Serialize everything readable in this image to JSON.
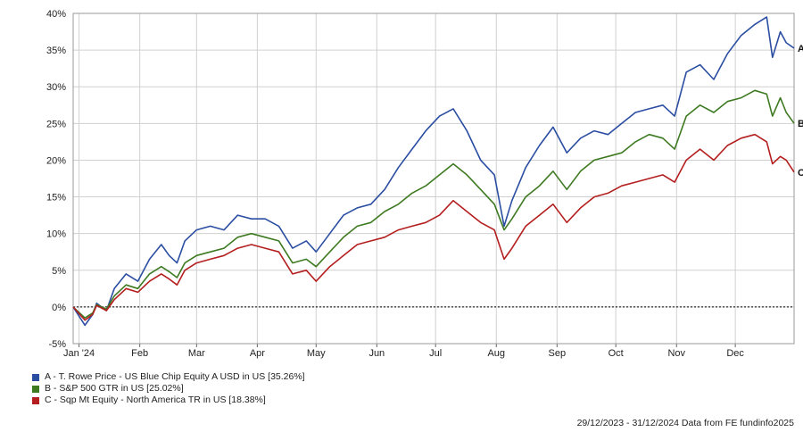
{
  "chart_data": {
    "type": "line",
    "ylim": [
      -5,
      40
    ],
    "y_ticks": [
      "40%",
      "35%",
      "30%",
      "25%",
      "20%",
      "15%",
      "10%",
      "5%",
      "0%",
      "-5%"
    ],
    "y_tick_values": [
      40,
      35,
      30,
      25,
      20,
      15,
      10,
      5,
      0,
      -5
    ],
    "x_ticks": [
      "Jan '24",
      "Feb",
      "Mar",
      "Apr",
      "May",
      "Jun",
      "Jul",
      "Aug",
      "Sep",
      "Oct",
      "Nov",
      "Dec"
    ],
    "x_tick_dates": [
      "2024-01-01",
      "2024-02-01",
      "2024-03-01",
      "2024-04-01",
      "2024-05-01",
      "2024-06-01",
      "2024-07-01",
      "2024-08-01",
      "2024-09-01",
      "2024-10-01",
      "2024-11-01",
      "2024-12-01"
    ],
    "x_range": [
      "2023-12-29",
      "2024-12-31"
    ],
    "grid": true,
    "zero_line": "dashed",
    "legend_position": "bottom-left",
    "series": [
      {
        "name": "A - T. Rowe Price - US Blue Chip Equity A USD in US [35.26%]",
        "end_label": "A",
        "color": "#2b4ea2",
        "points": [
          [
            "2023-12-29",
            0
          ],
          [
            "2024-01-04",
            -2.5
          ],
          [
            "2024-01-08",
            -1.0
          ],
          [
            "2024-01-10",
            0.5
          ],
          [
            "2024-01-15",
            -0.5
          ],
          [
            "2024-01-19",
            2.5
          ],
          [
            "2024-01-25",
            4.5
          ],
          [
            "2024-01-31",
            3.5
          ],
          [
            "2024-02-06",
            6.5
          ],
          [
            "2024-02-12",
            8.5
          ],
          [
            "2024-02-16",
            7.0
          ],
          [
            "2024-02-20",
            6.0
          ],
          [
            "2024-02-24",
            9.0
          ],
          [
            "2024-03-01",
            10.5
          ],
          [
            "2024-03-08",
            11.0
          ],
          [
            "2024-03-15",
            10.5
          ],
          [
            "2024-03-22",
            12.5
          ],
          [
            "2024-03-29",
            12.0
          ],
          [
            "2024-04-05",
            12.0
          ],
          [
            "2024-04-12",
            11.0
          ],
          [
            "2024-04-19",
            8.0
          ],
          [
            "2024-04-26",
            9.0
          ],
          [
            "2024-05-01",
            7.5
          ],
          [
            "2024-05-08",
            10.0
          ],
          [
            "2024-05-15",
            12.5
          ],
          [
            "2024-05-22",
            13.5
          ],
          [
            "2024-05-29",
            14.0
          ],
          [
            "2024-06-05",
            16.0
          ],
          [
            "2024-06-12",
            19.0
          ],
          [
            "2024-06-19",
            21.5
          ],
          [
            "2024-06-26",
            24.0
          ],
          [
            "2024-07-03",
            26.0
          ],
          [
            "2024-07-10",
            27.0
          ],
          [
            "2024-07-17",
            24.0
          ],
          [
            "2024-07-24",
            20.0
          ],
          [
            "2024-07-31",
            18.0
          ],
          [
            "2024-08-05",
            11.0
          ],
          [
            "2024-08-09",
            14.5
          ],
          [
            "2024-08-16",
            19.0
          ],
          [
            "2024-08-23",
            22.0
          ],
          [
            "2024-08-30",
            24.5
          ],
          [
            "2024-09-06",
            21.0
          ],
          [
            "2024-09-13",
            23.0
          ],
          [
            "2024-09-20",
            24.0
          ],
          [
            "2024-09-27",
            23.5
          ],
          [
            "2024-10-04",
            25.0
          ],
          [
            "2024-10-11",
            26.5
          ],
          [
            "2024-10-18",
            27.0
          ],
          [
            "2024-10-25",
            27.5
          ],
          [
            "2024-10-31",
            26.0
          ],
          [
            "2024-11-06",
            32.0
          ],
          [
            "2024-11-13",
            33.0
          ],
          [
            "2024-11-20",
            31.0
          ],
          [
            "2024-11-27",
            34.5
          ],
          [
            "2024-12-04",
            37.0
          ],
          [
            "2024-12-11",
            38.5
          ],
          [
            "2024-12-17",
            39.5
          ],
          [
            "2024-12-20",
            34.0
          ],
          [
            "2024-12-24",
            37.5
          ],
          [
            "2024-12-27",
            36.0
          ],
          [
            "2024-12-31",
            35.26
          ]
        ]
      },
      {
        "name": "B - S&P 500 GTR in US [25.02%]",
        "end_label": "B",
        "color": "#3e7a21",
        "points": [
          [
            "2023-12-29",
            0
          ],
          [
            "2024-01-04",
            -1.5
          ],
          [
            "2024-01-08",
            -0.8
          ],
          [
            "2024-01-10",
            0.3
          ],
          [
            "2024-01-15",
            -0.3
          ],
          [
            "2024-01-19",
            1.5
          ],
          [
            "2024-01-25",
            3.0
          ],
          [
            "2024-01-31",
            2.5
          ],
          [
            "2024-02-06",
            4.5
          ],
          [
            "2024-02-12",
            5.5
          ],
          [
            "2024-02-16",
            4.8
          ],
          [
            "2024-02-20",
            4.0
          ],
          [
            "2024-02-24",
            6.0
          ],
          [
            "2024-03-01",
            7.0
          ],
          [
            "2024-03-08",
            7.5
          ],
          [
            "2024-03-15",
            8.0
          ],
          [
            "2024-03-22",
            9.5
          ],
          [
            "2024-03-29",
            10.0
          ],
          [
            "2024-04-05",
            9.5
          ],
          [
            "2024-04-12",
            9.0
          ],
          [
            "2024-04-19",
            6.0
          ],
          [
            "2024-04-26",
            6.5
          ],
          [
            "2024-05-01",
            5.5
          ],
          [
            "2024-05-08",
            7.5
          ],
          [
            "2024-05-15",
            9.5
          ],
          [
            "2024-05-22",
            11.0
          ],
          [
            "2024-05-29",
            11.5
          ],
          [
            "2024-06-05",
            13.0
          ],
          [
            "2024-06-12",
            14.0
          ],
          [
            "2024-06-19",
            15.5
          ],
          [
            "2024-06-26",
            16.5
          ],
          [
            "2024-07-03",
            18.0
          ],
          [
            "2024-07-10",
            19.5
          ],
          [
            "2024-07-17",
            18.0
          ],
          [
            "2024-07-24",
            16.0
          ],
          [
            "2024-07-31",
            14.0
          ],
          [
            "2024-08-05",
            10.5
          ],
          [
            "2024-08-09",
            12.0
          ],
          [
            "2024-08-16",
            15.0
          ],
          [
            "2024-08-23",
            16.5
          ],
          [
            "2024-08-30",
            18.5
          ],
          [
            "2024-09-06",
            16.0
          ],
          [
            "2024-09-13",
            18.5
          ],
          [
            "2024-09-20",
            20.0
          ],
          [
            "2024-09-27",
            20.5
          ],
          [
            "2024-10-04",
            21.0
          ],
          [
            "2024-10-11",
            22.5
          ],
          [
            "2024-10-18",
            23.5
          ],
          [
            "2024-10-25",
            23.0
          ],
          [
            "2024-10-31",
            21.5
          ],
          [
            "2024-11-06",
            26.0
          ],
          [
            "2024-11-13",
            27.5
          ],
          [
            "2024-11-20",
            26.5
          ],
          [
            "2024-11-27",
            28.0
          ],
          [
            "2024-12-04",
            28.5
          ],
          [
            "2024-12-11",
            29.5
          ],
          [
            "2024-12-17",
            29.0
          ],
          [
            "2024-12-20",
            26.0
          ],
          [
            "2024-12-24",
            28.5
          ],
          [
            "2024-12-27",
            26.5
          ],
          [
            "2024-12-31",
            25.02
          ]
        ]
      },
      {
        "name": "C - Sqp Mt Equity - North America TR in US [18.38%]",
        "end_label": "C",
        "color": "#b41e1e",
        "points": [
          [
            "2023-12-29",
            0
          ],
          [
            "2024-01-04",
            -1.8
          ],
          [
            "2024-01-08",
            -1.0
          ],
          [
            "2024-01-10",
            0.2
          ],
          [
            "2024-01-15",
            -0.5
          ],
          [
            "2024-01-19",
            1.0
          ],
          [
            "2024-01-25",
            2.5
          ],
          [
            "2024-01-31",
            2.0
          ],
          [
            "2024-02-06",
            3.5
          ],
          [
            "2024-02-12",
            4.5
          ],
          [
            "2024-02-16",
            3.8
          ],
          [
            "2024-02-20",
            3.0
          ],
          [
            "2024-02-24",
            5.0
          ],
          [
            "2024-03-01",
            6.0
          ],
          [
            "2024-03-08",
            6.5
          ],
          [
            "2024-03-15",
            7.0
          ],
          [
            "2024-03-22",
            8.0
          ],
          [
            "2024-03-29",
            8.5
          ],
          [
            "2024-04-05",
            8.0
          ],
          [
            "2024-04-12",
            7.5
          ],
          [
            "2024-04-19",
            4.5
          ],
          [
            "2024-04-26",
            5.0
          ],
          [
            "2024-05-01",
            3.5
          ],
          [
            "2024-05-08",
            5.5
          ],
          [
            "2024-05-15",
            7.0
          ],
          [
            "2024-05-22",
            8.5
          ],
          [
            "2024-05-29",
            9.0
          ],
          [
            "2024-06-05",
            9.5
          ],
          [
            "2024-06-12",
            10.5
          ],
          [
            "2024-06-19",
            11.0
          ],
          [
            "2024-06-26",
            11.5
          ],
          [
            "2024-07-03",
            12.5
          ],
          [
            "2024-07-10",
            14.5
          ],
          [
            "2024-07-17",
            13.0
          ],
          [
            "2024-07-24",
            11.5
          ],
          [
            "2024-07-31",
            10.5
          ],
          [
            "2024-08-05",
            6.5
          ],
          [
            "2024-08-09",
            8.0
          ],
          [
            "2024-08-16",
            11.0
          ],
          [
            "2024-08-23",
            12.5
          ],
          [
            "2024-08-30",
            14.0
          ],
          [
            "2024-09-06",
            11.5
          ],
          [
            "2024-09-13",
            13.5
          ],
          [
            "2024-09-20",
            15.0
          ],
          [
            "2024-09-27",
            15.5
          ],
          [
            "2024-10-04",
            16.5
          ],
          [
            "2024-10-11",
            17.0
          ],
          [
            "2024-10-18",
            17.5
          ],
          [
            "2024-10-25",
            18.0
          ],
          [
            "2024-10-31",
            17.0
          ],
          [
            "2024-11-06",
            20.0
          ],
          [
            "2024-11-13",
            21.5
          ],
          [
            "2024-11-20",
            20.0
          ],
          [
            "2024-11-27",
            22.0
          ],
          [
            "2024-12-04",
            23.0
          ],
          [
            "2024-12-11",
            23.5
          ],
          [
            "2024-12-17",
            22.5
          ],
          [
            "2024-12-20",
            19.5
          ],
          [
            "2024-12-24",
            20.5
          ],
          [
            "2024-12-27",
            20.0
          ],
          [
            "2024-12-31",
            18.38
          ]
        ]
      }
    ]
  },
  "footer": "29/12/2023 - 31/12/2024 Data from FE fundinfo2025"
}
